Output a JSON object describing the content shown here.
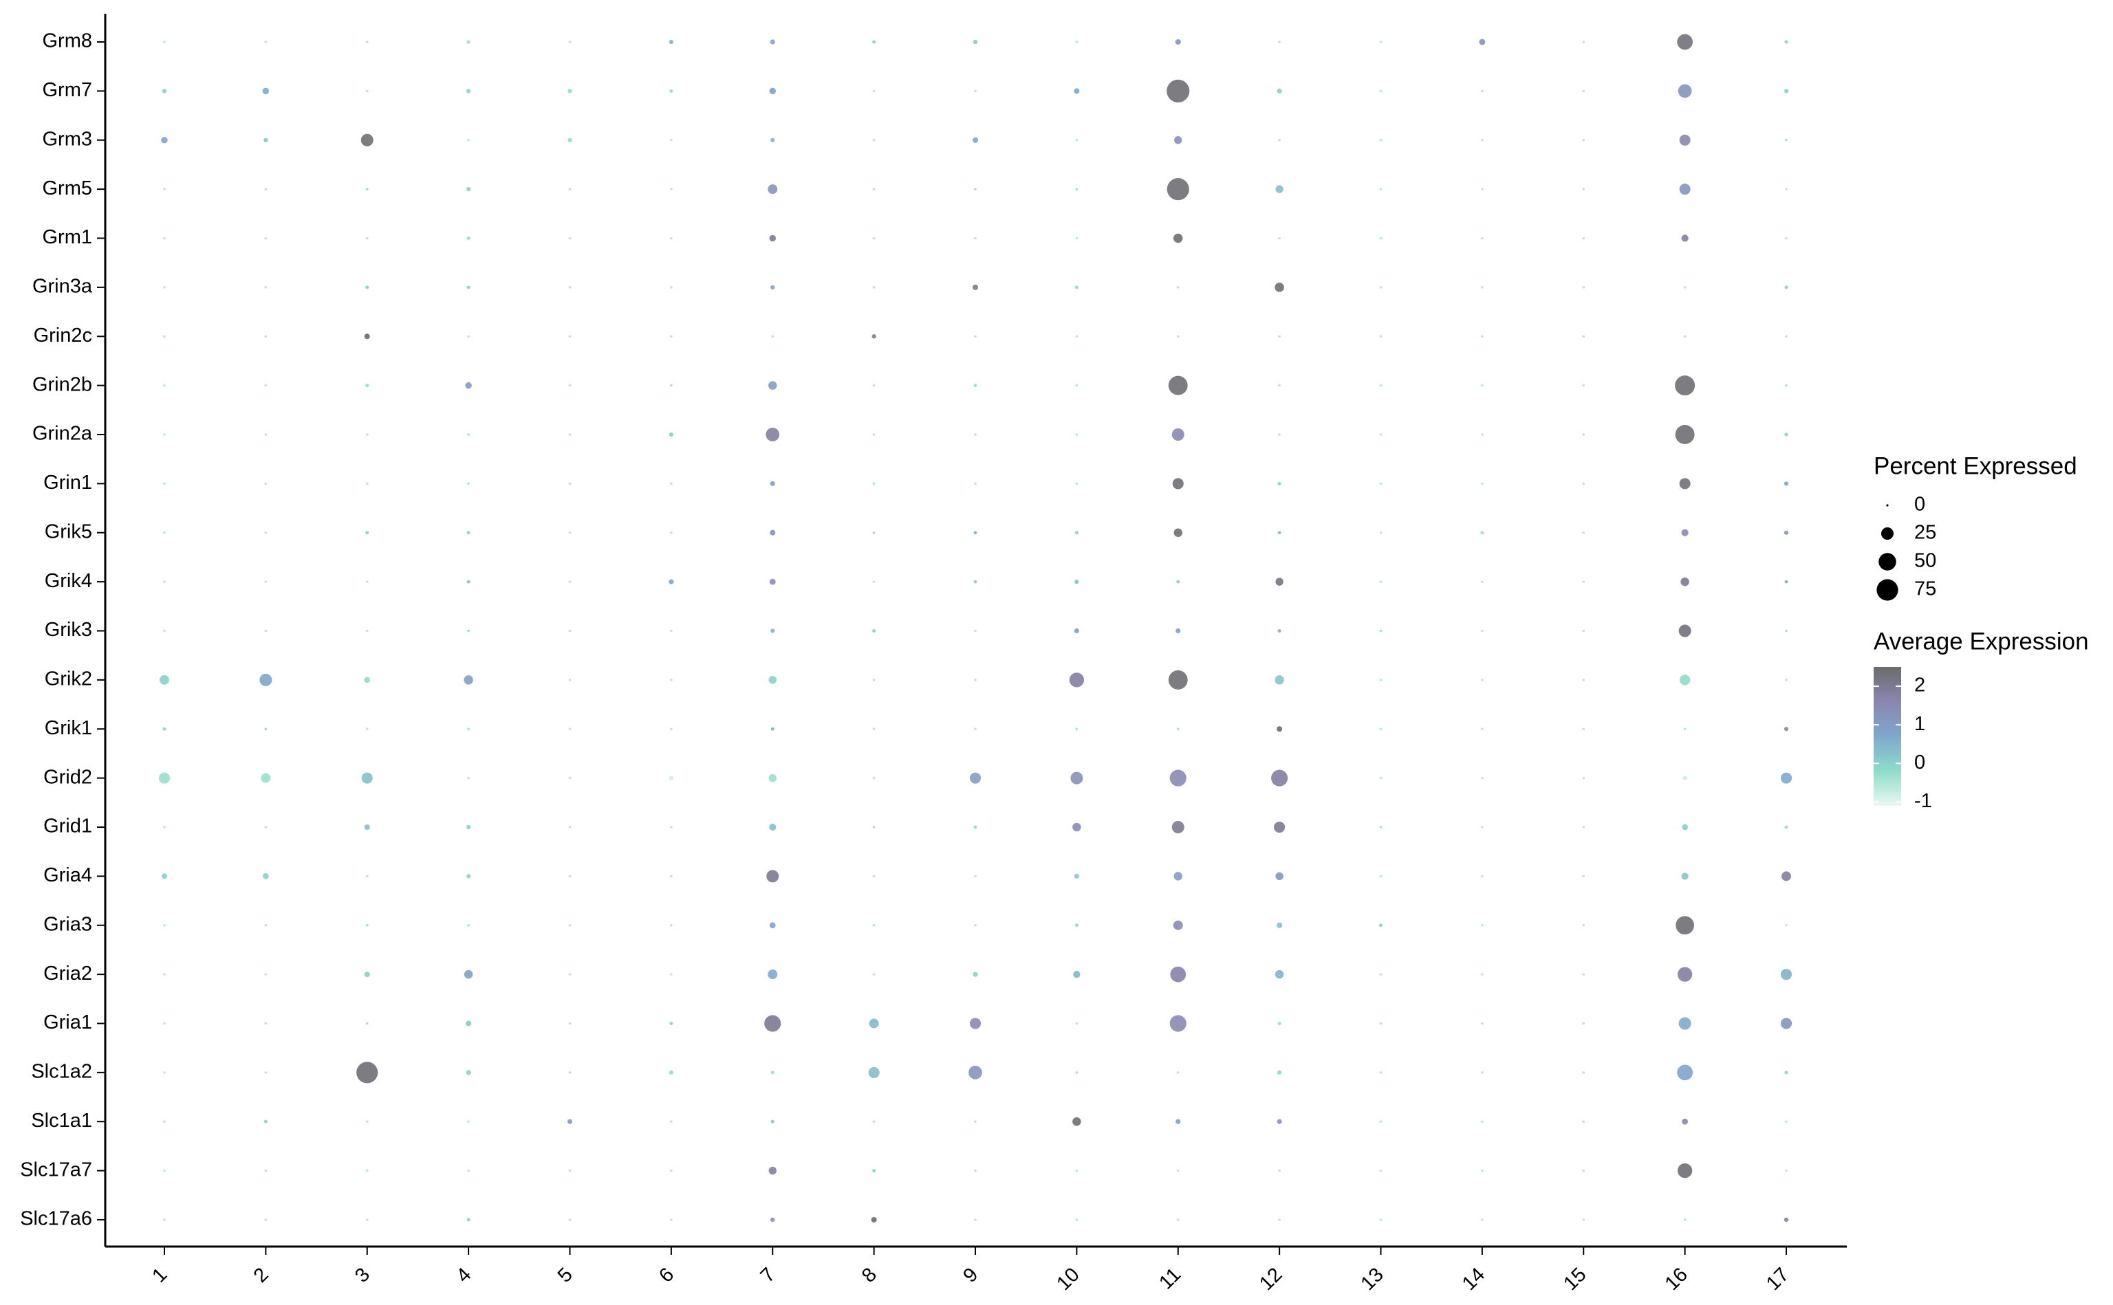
{
  "chart_data": {
    "type": "dot",
    "categories": [
      "1",
      "2",
      "3",
      "4",
      "5",
      "6",
      "7",
      "8",
      "9",
      "10",
      "11",
      "12",
      "13",
      "14",
      "15",
      "16",
      "17"
    ],
    "rows": [
      {
        "name": "Grm8",
        "pct": [
          1,
          1,
          1,
          2,
          1,
          3,
          4,
          2,
          3,
          1,
          5,
          1,
          1,
          6,
          1,
          40,
          2
        ],
        "avg": [
          -0.5,
          -0.5,
          -0.5,
          -0.3,
          -0.5,
          0.5,
          0.8,
          0,
          0.2,
          -0.5,
          1.2,
          -0.5,
          -0.5,
          1.3,
          -0.5,
          2.3,
          0
        ]
      },
      {
        "name": "Grm7",
        "pct": [
          3,
          7,
          1,
          3,
          3,
          2,
          7,
          1,
          1,
          5,
          85,
          4,
          1,
          1,
          1,
          30,
          3
        ],
        "avg": [
          0,
          0.7,
          -0.5,
          0,
          -0.2,
          -0.3,
          1,
          -0.5,
          -0.5,
          0.8,
          2.4,
          0,
          -0.5,
          -0.5,
          -0.5,
          1.2,
          0
        ]
      },
      {
        "name": "Grm3",
        "pct": [
          7,
          3,
          25,
          1,
          3,
          1,
          3,
          1,
          5,
          1,
          10,
          1,
          1,
          1,
          1,
          20,
          1
        ],
        "avg": [
          0.8,
          0.2,
          2.4,
          -0.5,
          -0.2,
          -0.5,
          0.5,
          -0.5,
          0.8,
          -0.5,
          1.3,
          -0.5,
          -0.5,
          -0.5,
          -0.5,
          1.6,
          -0.3
        ]
      },
      {
        "name": "Grm5",
        "pct": [
          1,
          1,
          1,
          3,
          1,
          1,
          15,
          1,
          1,
          1,
          80,
          10,
          1,
          1,
          1,
          20,
          1
        ],
        "avg": [
          -0.5,
          -0.5,
          -0.2,
          0,
          -0.5,
          -0.5,
          1.2,
          -0.5,
          -0.3,
          -0.2,
          2.4,
          0.3,
          -0.5,
          -0.5,
          -0.5,
          1.2,
          -0.5
        ]
      },
      {
        "name": "Grm1",
        "pct": [
          1,
          1,
          1,
          2,
          1,
          1,
          7,
          1,
          1,
          1,
          14,
          1,
          1,
          1,
          1,
          8,
          1
        ],
        "avg": [
          -0.5,
          -0.5,
          -0.5,
          -0.2,
          -0.5,
          -0.5,
          2,
          -0.5,
          -0.5,
          -0.5,
          2.4,
          -0.5,
          -0.5,
          -0.5,
          -0.5,
          1.8,
          -0.5
        ]
      },
      {
        "name": "Grin3a",
        "pct": [
          1,
          1,
          2,
          2,
          1,
          1,
          3,
          1,
          5,
          2,
          1,
          14,
          1,
          1,
          1,
          1,
          2
        ],
        "avg": [
          -0.5,
          -0.5,
          0,
          0,
          -0.5,
          -0.5,
          1,
          -0.5,
          2,
          -0.2,
          -0.5,
          2.4,
          -0.5,
          -0.5,
          -0.5,
          -0.5,
          0
        ]
      },
      {
        "name": "Grin2c",
        "pct": [
          1,
          1,
          5,
          1,
          1,
          1,
          1,
          3,
          1,
          1,
          1,
          1,
          1,
          1,
          1,
          1,
          1
        ],
        "avg": [
          -0.5,
          -0.5,
          2.5,
          -0.5,
          -0.5,
          -0.5,
          -0.5,
          2,
          -0.5,
          -0.5,
          -0.5,
          -0.5,
          -0.5,
          -0.5,
          -0.5,
          -0.5,
          -0.5
        ]
      },
      {
        "name": "Grin2b",
        "pct": [
          1,
          1,
          2,
          7,
          1,
          1,
          12,
          1,
          2,
          1,
          60,
          1,
          1,
          1,
          1,
          65,
          1
        ],
        "avg": [
          -0.5,
          -0.5,
          -0.2,
          1,
          -0.5,
          -0.3,
          1,
          -0.5,
          -0.3,
          -0.5,
          2.4,
          -0.5,
          -0.5,
          -0.5,
          -0.5,
          2.4,
          -0.3
        ]
      },
      {
        "name": "Grin2a",
        "pct": [
          1,
          1,
          1,
          1,
          1,
          3,
          30,
          1,
          1,
          1,
          25,
          1,
          1,
          1,
          1,
          60,
          2
        ],
        "avg": [
          -0.5,
          -0.5,
          -0.5,
          -0.3,
          -0.5,
          0,
          1.8,
          -0.5,
          -0.5,
          -0.5,
          1.5,
          -0.5,
          -0.5,
          -0.5,
          -0.5,
          2.4,
          0
        ]
      },
      {
        "name": "Grin1",
        "pct": [
          1,
          1,
          1,
          1,
          1,
          1,
          4,
          1,
          1,
          1,
          20,
          2,
          1,
          1,
          1,
          20,
          3
        ],
        "avg": [
          -0.5,
          -0.5,
          -0.5,
          -0.3,
          -0.5,
          -0.5,
          1,
          -0.3,
          -0.5,
          -0.5,
          2.4,
          0,
          -0.5,
          -0.5,
          -0.5,
          2.3,
          0.8
        ]
      },
      {
        "name": "Grik5",
        "pct": [
          1,
          1,
          2,
          2,
          1,
          1,
          5,
          1,
          2,
          2,
          12,
          2,
          1,
          2,
          1,
          8,
          3
        ],
        "avg": [
          -0.5,
          -0.5,
          0,
          0,
          -0.5,
          -0.5,
          1.3,
          -0.2,
          0.5,
          0,
          2.4,
          0.3,
          -0.5,
          -0.3,
          -0.5,
          1.5,
          1.2
        ]
      },
      {
        "name": "Grik4",
        "pct": [
          1,
          1,
          1,
          2,
          1,
          4,
          6,
          1,
          2,
          3,
          2,
          10,
          1,
          1,
          1,
          12,
          2
        ],
        "avg": [
          -0.5,
          -0.5,
          -0.5,
          0.3,
          -0.5,
          0.8,
          1.5,
          -0.5,
          0,
          0.3,
          0,
          2.2,
          -0.5,
          -0.5,
          -0.5,
          2,
          0.5
        ]
      },
      {
        "name": "Grik3",
        "pct": [
          1,
          1,
          1,
          1,
          1,
          1,
          3,
          2,
          1,
          4,
          4,
          2,
          1,
          1,
          1,
          25,
          1
        ],
        "avg": [
          -0.5,
          -0.5,
          -0.5,
          0,
          -0.5,
          -0.5,
          0.5,
          0,
          -0.5,
          1,
          1,
          0.5,
          -0.3,
          -0.5,
          -0.5,
          2.3,
          -0.3
        ]
      },
      {
        "name": "Grik2",
        "pct": [
          15,
          25,
          6,
          14,
          1,
          1,
          10,
          1,
          1,
          35,
          60,
          14,
          1,
          1,
          1,
          18,
          1
        ],
        "avg": [
          0,
          0.8,
          -0.2,
          1,
          -0.5,
          -0.5,
          0,
          -0.5,
          -0.5,
          1.8,
          2.4,
          0.2,
          -0.5,
          -0.5,
          -0.5,
          -0.2,
          -0.5
        ]
      },
      {
        "name": "Grik1",
        "pct": [
          2,
          1,
          1,
          1,
          1,
          1,
          2,
          1,
          1,
          1,
          1,
          5,
          1,
          1,
          1,
          1,
          3
        ],
        "avg": [
          0,
          0,
          -0.5,
          -0.3,
          -0.5,
          -0.5,
          0.5,
          -0.5,
          -0.5,
          -0.3,
          -0.3,
          2.5,
          -0.5,
          -0.5,
          -0.5,
          -0.5,
          1.5
        ]
      },
      {
        "name": "Grid2",
        "pct": [
          20,
          15,
          20,
          1,
          1,
          3,
          10,
          1,
          20,
          25,
          45,
          45,
          1,
          1,
          1,
          3,
          20
        ],
        "avg": [
          -0.3,
          -0.3,
          0.3,
          -0.5,
          -0.5,
          -0.8,
          -0.3,
          -0.5,
          1,
          1.3,
          1.5,
          1.8,
          -0.5,
          -0.5,
          -0.5,
          -0.8,
          0.7
        ]
      },
      {
        "name": "Grid1",
        "pct": [
          1,
          1,
          5,
          3,
          1,
          1,
          8,
          1,
          2,
          12,
          25,
          20,
          1,
          1,
          1,
          6,
          2
        ],
        "avg": [
          -0.5,
          -0.5,
          0.3,
          0,
          -0.5,
          -0.5,
          0.3,
          -0.3,
          -0.2,
          1.5,
          2,
          2,
          -0.3,
          -0.5,
          -0.5,
          0,
          -0.3
        ]
      },
      {
        "name": "Gria4",
        "pct": [
          5,
          6,
          1,
          3,
          1,
          1,
          25,
          1,
          1,
          4,
          12,
          10,
          1,
          1,
          1,
          8,
          15
        ],
        "avg": [
          0,
          0,
          -0.5,
          0,
          -0.5,
          -0.5,
          2,
          -0.5,
          -0.5,
          0.2,
          1,
          1.2,
          -0.5,
          -0.5,
          -0.5,
          0.2,
          1.8
        ]
      },
      {
        "name": "Gria3",
        "pct": [
          1,
          1,
          1,
          1,
          1,
          1,
          6,
          1,
          1,
          2,
          15,
          5,
          2,
          1,
          1,
          55,
          1
        ],
        "avg": [
          -0.5,
          -0.5,
          -0.2,
          -0.3,
          -0.5,
          -0.5,
          0.8,
          -0.5,
          -0.5,
          -0.2,
          1.5,
          0.3,
          0,
          -0.5,
          -0.5,
          2.4,
          -0.5
        ]
      },
      {
        "name": "Gria2",
        "pct": [
          1,
          1,
          5,
          12,
          1,
          1,
          15,
          1,
          4,
          8,
          40,
          12,
          1,
          1,
          1,
          35,
          20
        ],
        "avg": [
          -0.5,
          -0.5,
          0,
          1,
          -0.5,
          -0.5,
          0.7,
          -0.5,
          0,
          0.5,
          1.7,
          0.5,
          -0.5,
          -0.5,
          -0.5,
          1.8,
          0.5
        ]
      },
      {
        "name": "Gria1",
        "pct": [
          1,
          1,
          1,
          5,
          1,
          2,
          45,
          15,
          20,
          1,
          45,
          2,
          1,
          1,
          1,
          25,
          20
        ],
        "avg": [
          -0.5,
          -0.5,
          -0.3,
          0.2,
          -0.5,
          0,
          2,
          0.4,
          1.5,
          -0.5,
          1.5,
          -0.3,
          -0.5,
          -0.5,
          -0.5,
          0.7,
          1.2
        ]
      },
      {
        "name": "Slc1a2",
        "pct": [
          1,
          1,
          75,
          4,
          1,
          3,
          2,
          20,
          30,
          1,
          1,
          3,
          1,
          1,
          1,
          40,
          2
        ],
        "avg": [
          -0.5,
          -0.5,
          2.4,
          0,
          -0.5,
          -0.3,
          -0.3,
          0.3,
          1.2,
          -0.3,
          -0.5,
          -0.2,
          -0.5,
          -0.5,
          -0.5,
          0.8,
          0
        ]
      },
      {
        "name": "Slc1a1",
        "pct": [
          1,
          2,
          1,
          1,
          4,
          1,
          2,
          1,
          1,
          12,
          4,
          4,
          1,
          1,
          1,
          6,
          1
        ],
        "avg": [
          -0.5,
          0,
          -0.5,
          -0.5,
          1,
          -0.5,
          0.3,
          -0.5,
          -0.5,
          2.4,
          1,
          1.2,
          -0.5,
          -0.5,
          -0.5,
          1.6,
          -0.5
        ]
      },
      {
        "name": "Slc17a7",
        "pct": [
          1,
          1,
          1,
          1,
          1,
          1,
          10,
          2,
          1,
          1,
          1,
          1,
          1,
          1,
          1,
          35,
          1
        ],
        "avg": [
          -0.5,
          -0.5,
          -0.5,
          -0.5,
          -0.5,
          -0.5,
          1.8,
          0,
          -0.5,
          -0.5,
          -0.5,
          -0.5,
          -0.5,
          -0.5,
          -0.5,
          2.4,
          -0.5
        ]
      },
      {
        "name": "Slc17a6",
        "pct": [
          1,
          1,
          1,
          2,
          1,
          1,
          3,
          5,
          1,
          1,
          1,
          1,
          1,
          1,
          1,
          1,
          3
        ],
        "avg": [
          -0.5,
          -0.5,
          -0.5,
          0,
          -0.5,
          -0.5,
          1.5,
          2.5,
          -0.5,
          -0.5,
          -0.5,
          -0.5,
          -0.5,
          -0.5,
          -0.5,
          -0.5,
          1.8
        ]
      }
    ],
    "size_legend": {
      "title": "Percent Expressed",
      "ticks": [
        0,
        25,
        50,
        75
      ]
    },
    "color_legend": {
      "title": "Average Expression",
      "ticks": [
        -1,
        0,
        1,
        2
      ],
      "lim": [
        -1.1,
        2.5
      ],
      "colorscale": [
        "#e9f8f3",
        "#8fdcc9",
        "#7fa8cc",
        "#8a86b0",
        "#6b6b6b"
      ]
    }
  }
}
